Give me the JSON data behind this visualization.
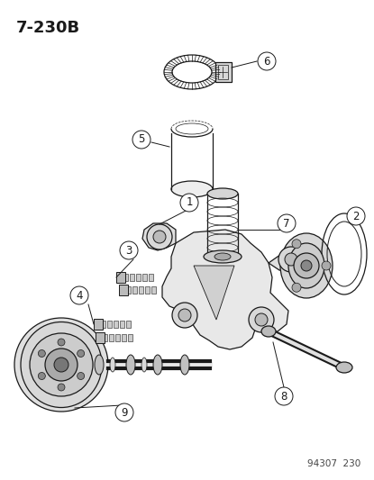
{
  "title": "7-230B",
  "footer": "94307  230",
  "bg_color": "#ffffff",
  "line_color": "#1a1a1a",
  "lw": 0.9,
  "fig_w": 4.15,
  "fig_h": 5.33,
  "dpi": 100,
  "title_fontsize": 13,
  "label_fontsize": 8.5,
  "footer_fontsize": 7.5
}
